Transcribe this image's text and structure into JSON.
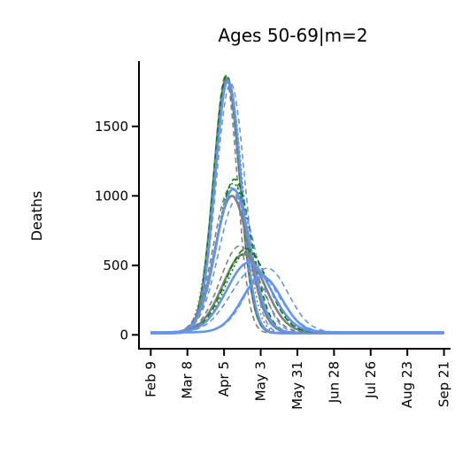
{
  "chart_data": {
    "type": "line",
    "title": "Ages 50-69|m=2",
    "xlabel": "",
    "ylabel": "Deaths",
    "x_ticks": [
      "Feb 9",
      "Mar 8",
      "Apr 5",
      "May 3",
      "May 31",
      "Jun 28",
      "Jul 26",
      "Aug 23",
      "Sep 21"
    ],
    "x_tick_dates": [
      "2020-02-09",
      "2020-03-08",
      "2020-04-05",
      "2020-05-03",
      "2020-05-31",
      "2020-06-28",
      "2020-07-26",
      "2020-08-23",
      "2020-09-20"
    ],
    "xlim": [
      "2020-01-31",
      "2020-09-25"
    ],
    "y_ticks": [
      0,
      500,
      1000,
      1500
    ],
    "ylim": [
      -100,
      1970
    ],
    "grid": false,
    "legend": "none",
    "colors": {
      "gray": "#7f7f7f",
      "green": "#008000",
      "blue": "#6495ed"
    },
    "series": [
      {
        "color": "#7f7f7f",
        "style": "solid",
        "peak_date": "2020-04-07",
        "peak_deaths": 1850,
        "spread_days": 10,
        "baseline": 12
      },
      {
        "color": "#7f7f7f",
        "style": "dashed",
        "peak_date": "2020-04-06",
        "peak_deaths": 1860,
        "spread_days": 9,
        "baseline": 12
      },
      {
        "color": "#7f7f7f",
        "style": "dotted",
        "peak_date": "2020-04-08",
        "peak_deaths": 1830,
        "spread_days": 11,
        "baseline": 12
      },
      {
        "color": "#008000",
        "style": "dashed",
        "peak_date": "2020-04-07",
        "peak_deaths": 1870,
        "spread_days": 10,
        "baseline": 12
      },
      {
        "color": "#008000",
        "style": "dotted",
        "peak_date": "2020-04-08",
        "peak_deaths": 1840,
        "spread_days": 10,
        "baseline": 12
      },
      {
        "color": "#6495ed",
        "style": "solid",
        "peak_date": "2020-04-08",
        "peak_deaths": 1830,
        "spread_days": 10,
        "baseline": 12
      },
      {
        "color": "#6495ed",
        "style": "dashed",
        "peak_date": "2020-04-10",
        "peak_deaths": 1810,
        "spread_days": 11,
        "baseline": 12
      },
      {
        "color": "#7f7f7f",
        "style": "dashed",
        "peak_date": "2020-04-10",
        "peak_deaths": 1060,
        "spread_days": 13,
        "baseline": 15
      },
      {
        "color": "#7f7f7f",
        "style": "solid",
        "peak_date": "2020-04-11",
        "peak_deaths": 1000,
        "spread_days": 13,
        "baseline": 15
      },
      {
        "color": "#008000",
        "style": "dashed",
        "peak_date": "2020-04-13",
        "peak_deaths": 1120,
        "spread_days": 13,
        "baseline": 15
      },
      {
        "color": "#008000",
        "style": "dotted",
        "peak_date": "2020-04-12",
        "peak_deaths": 1090,
        "spread_days": 13,
        "baseline": 15
      },
      {
        "color": "#6495ed",
        "style": "solid",
        "peak_date": "2020-04-12",
        "peak_deaths": 1050,
        "spread_days": 13,
        "baseline": 15
      },
      {
        "color": "#6495ed",
        "style": "dashed",
        "peak_date": "2020-04-15",
        "peak_deaths": 980,
        "spread_days": 14,
        "baseline": 15
      },
      {
        "color": "#7f7f7f",
        "style": "dashed",
        "peak_date": "2020-04-17",
        "peak_deaths": 640,
        "spread_days": 15,
        "baseline": 18
      },
      {
        "color": "#7f7f7f",
        "style": "solid",
        "peak_date": "2020-04-20",
        "peak_deaths": 580,
        "spread_days": 16,
        "baseline": 18
      },
      {
        "color": "#008000",
        "style": "dashed",
        "peak_date": "2020-04-22",
        "peak_deaths": 620,
        "spread_days": 16,
        "baseline": 18
      },
      {
        "color": "#008000",
        "style": "dotted",
        "peak_date": "2020-04-23",
        "peak_deaths": 600,
        "spread_days": 16,
        "baseline": 18
      },
      {
        "color": "#6495ed",
        "style": "solid",
        "peak_date": "2020-04-24",
        "peak_deaths": 520,
        "spread_days": 17,
        "baseline": 18
      },
      {
        "color": "#6495ed",
        "style": "dashed",
        "peak_date": "2020-04-28",
        "peak_deaths": 470,
        "spread_days": 18,
        "baseline": 18
      },
      {
        "color": "#6495ed",
        "style": "dashed",
        "peak_date": "2020-05-08",
        "peak_deaths": 480,
        "spread_days": 16,
        "baseline": 18
      },
      {
        "color": "#6495ed",
        "style": "solid",
        "peak_date": "2020-05-04",
        "peak_deaths": 420,
        "spread_days": 15,
        "baseline": 18
      }
    ]
  }
}
